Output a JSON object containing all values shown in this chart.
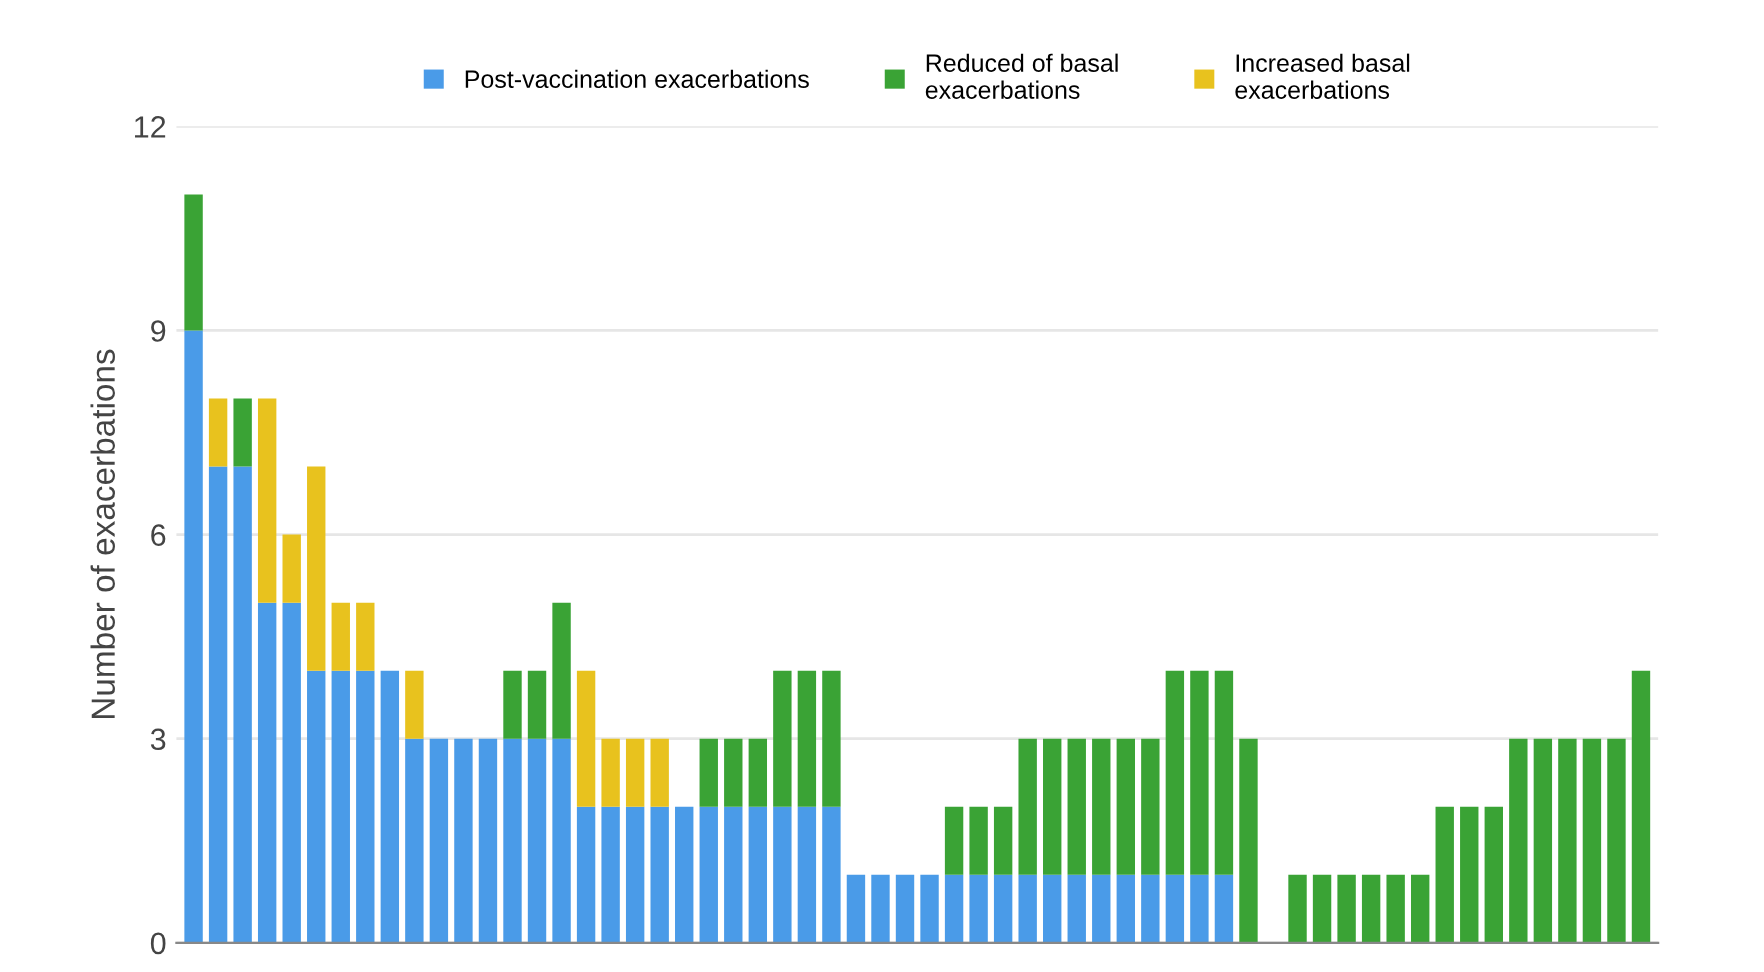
{
  "chart_data": {
    "type": "bar",
    "stacked": true,
    "ylabel": "Number of exacerbations",
    "categories": [
      null,
      null,
      null,
      null,
      null,
      null,
      null,
      null,
      null,
      null,
      null,
      null,
      null,
      null,
      null,
      null,
      null,
      null,
      null,
      null,
      null,
      null,
      null,
      null,
      null,
      null,
      null,
      null,
      null,
      null,
      null,
      null,
      null,
      null,
      null,
      null,
      null,
      null,
      null,
      null,
      null,
      null,
      null,
      null,
      null,
      null,
      null,
      null,
      null,
      null,
      null,
      null,
      null,
      null,
      null,
      null,
      null,
      null,
      null,
      null
    ],
    "series": [
      {
        "name": "Post-vaccination exacerbations",
        "color": "#4a9be8",
        "values": [
          9,
          7,
          7,
          5,
          5,
          4,
          4,
          4,
          4,
          3,
          3,
          3,
          3,
          3,
          3,
          3,
          2,
          2,
          2,
          2,
          2,
          2,
          2,
          2,
          2,
          2,
          2,
          1,
          1,
          1,
          1,
          1,
          1,
          1,
          1,
          1,
          1,
          1,
          1,
          1,
          1,
          1,
          1,
          0,
          0,
          0,
          0,
          0,
          0,
          0,
          0,
          0,
          0,
          0,
          0,
          0,
          0,
          0,
          0,
          0
        ]
      },
      {
        "name": "Reduced of basal exacerbations",
        "color": "#3aa335",
        "values": [
          2,
          0,
          1,
          0,
          0,
          0,
          0,
          0,
          0,
          0,
          0,
          0,
          0,
          1,
          1,
          2,
          0,
          0,
          0,
          0,
          0,
          1,
          1,
          1,
          2,
          2,
          2,
          0,
          0,
          0,
          0,
          1,
          1,
          1,
          2,
          2,
          2,
          2,
          2,
          2,
          3,
          3,
          3,
          3,
          0,
          1,
          1,
          1,
          1,
          1,
          1,
          2,
          2,
          2,
          3,
          3,
          3,
          3,
          3,
          4
        ]
      },
      {
        "name": "Increased basal exacerbations",
        "color": "#e8c21e",
        "values": [
          0,
          1,
          0,
          3,
          1,
          3,
          1,
          1,
          0,
          1,
          0,
          0,
          0,
          0,
          0,
          0,
          2,
          1,
          1,
          1,
          0,
          0,
          0,
          0,
          0,
          0,
          0,
          0,
          0,
          0,
          0,
          0,
          0,
          0,
          0,
          0,
          0,
          0,
          0,
          0,
          0,
          0,
          0,
          0,
          0,
          0,
          0,
          0,
          0,
          0,
          0,
          0,
          0,
          0,
          0,
          0,
          0,
          0,
          0,
          0
        ]
      }
    ],
    "ylim": [
      0,
      12
    ],
    "yticks": [
      0,
      3,
      6,
      9,
      12
    ],
    "grid": "y",
    "legend": "top"
  }
}
